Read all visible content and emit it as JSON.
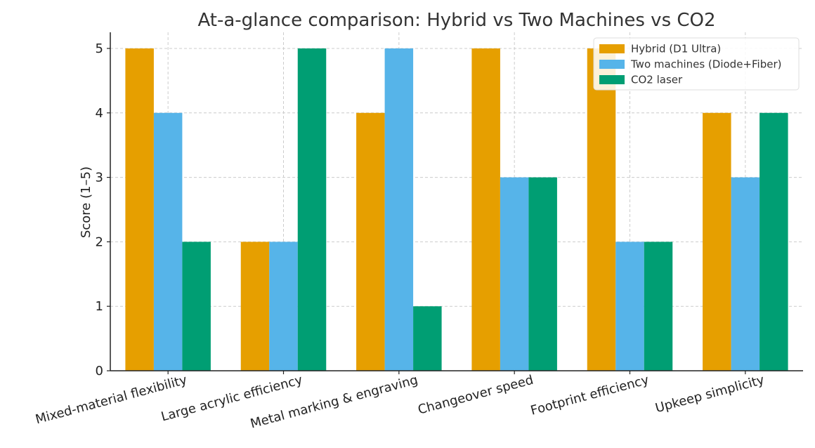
{
  "chart_data": {
    "type": "bar",
    "title": "At-a-glance comparison: Hybrid vs Two Machines vs CO2",
    "xlabel": "",
    "ylabel": "Score (1–5)",
    "ylim": [
      0,
      5.25
    ],
    "yticks": [
      0,
      1,
      2,
      3,
      4,
      5
    ],
    "grid": true,
    "legend_position": "top-right",
    "categories": [
      "Mixed-material flexibility",
      "Large acrylic efficiency",
      "Metal marking & engraving",
      "Changeover speed",
      "Footprint efficiency",
      "Upkeep simplicity"
    ],
    "series": [
      {
        "name": "Hybrid (D1 Ultra)",
        "color": "#E69F00",
        "values": [
          5,
          2,
          4,
          5,
          5,
          4
        ]
      },
      {
        "name": "Two machines (Diode+Fiber)",
        "color": "#56B4E9",
        "values": [
          4,
          2,
          5,
          3,
          2,
          3
        ]
      },
      {
        "name": "CO2 laser",
        "color": "#009E73",
        "values": [
          2,
          5,
          1,
          3,
          2,
          4
        ]
      }
    ]
  }
}
